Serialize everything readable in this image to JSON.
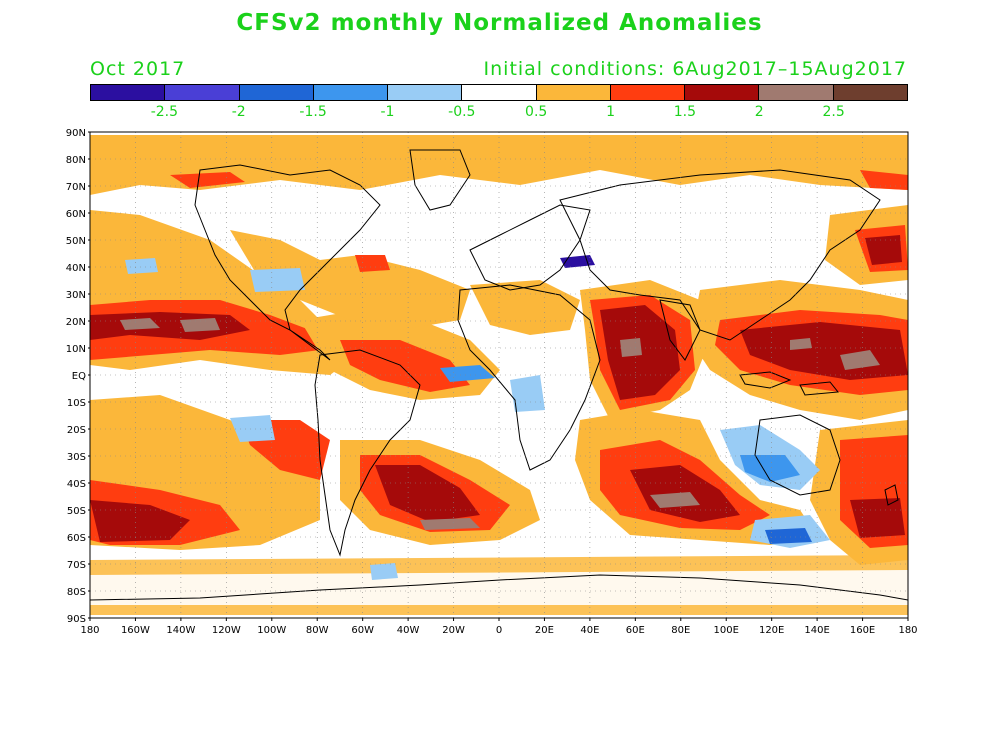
{
  "title": "CFSv2 monthly Normalized Anomalies",
  "valid_month": "Oct 2017",
  "initial_conditions": "Initial conditions: 6Aug2017–15Aug2017",
  "colorbar": {
    "colors": [
      "#2b0fa0",
      "#4a3fd6",
      "#1f66d6",
      "#3d96ee",
      "#99ccf5",
      "#ffffff",
      "#fbb73a",
      "#ff3d10",
      "#a50a0a",
      "#a07a70",
      "#6e3e2e"
    ],
    "labels": [
      "-2.5",
      "-2",
      "-1.5",
      "-1",
      "-0.5",
      "0.5",
      "1",
      "1.5",
      "2",
      "2.5"
    ]
  },
  "lat_labels": [
    "90N",
    "80N",
    "70N",
    "60N",
    "50N",
    "40N",
    "30N",
    "20N",
    "10N",
    "EQ",
    "10S",
    "20S",
    "30S",
    "40S",
    "50S",
    "60S",
    "70S",
    "80S",
    "90S"
  ],
  "lon_labels": [
    "180",
    "160W",
    "140W",
    "120W",
    "100W",
    "80W",
    "60W",
    "40W",
    "20W",
    "0",
    "20E",
    "40E",
    "60E",
    "80E",
    "100E",
    "120E",
    "140E",
    "160E",
    "180"
  ]
}
